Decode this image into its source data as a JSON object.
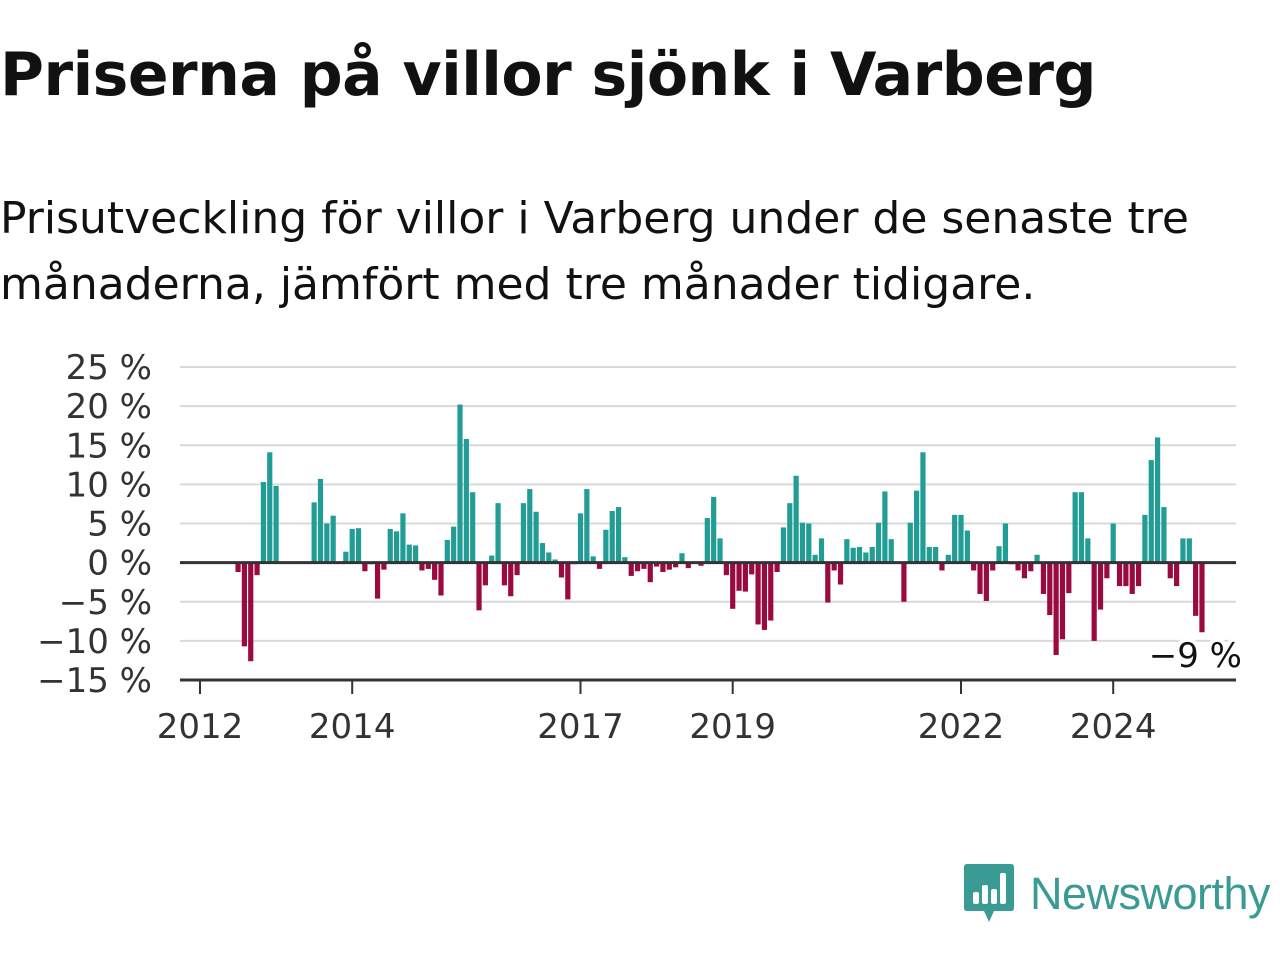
{
  "title": "Priserna på villor sjönk i Varberg",
  "subtitle": "Prisutveckling för villor i Varberg under de senaste tre månaderna, jämfört med tre månader tidigare.",
  "logo": {
    "text": "Newsworthy",
    "icon": "bar-chart-speech-bubble-icon",
    "color": "#3a9a94"
  },
  "chart_data": {
    "type": "bar",
    "ylim": [
      -15,
      25
    ],
    "yticks": [
      25,
      20,
      15,
      10,
      5,
      0,
      -5,
      -10,
      -15
    ],
    "ytick_labels": [
      "25 %",
      "20 %",
      "15 %",
      "10 %",
      "5 %",
      "0 %",
      "−5 %",
      "−10 %",
      "−15 %"
    ],
    "xticks": [
      2012,
      2014,
      2017,
      2019,
      2022,
      2024
    ],
    "xtick_labels": [
      "2012",
      "2014",
      "2017",
      "2019",
      "2022",
      "2024"
    ],
    "x_start_year": 2012.0,
    "x_step_months": 1,
    "colors": {
      "positive": "#219d95",
      "negative": "#9b0a3f"
    },
    "annotation": {
      "text": "−9 %",
      "value": -9
    },
    "values": [
      null,
      null,
      null,
      null,
      null,
      null,
      -1.2,
      -10.7,
      -12.6,
      -1.6,
      10.3,
      14.1,
      9.8,
      null,
      null,
      null,
      null,
      null,
      7.7,
      10.7,
      5.0,
      6.0,
      -0.1,
      1.4,
      4.3,
      4.4,
      -1.1,
      -0.2,
      -4.6,
      -0.9,
      4.3,
      4.0,
      6.3,
      2.3,
      2.2,
      -1.0,
      -0.8,
      -2.2,
      -4.2,
      2.9,
      4.6,
      20.2,
      15.8,
      9.0,
      -6.1,
      -2.9,
      0.9,
      7.6,
      -2.9,
      -4.3,
      -1.6,
      7.6,
      9.4,
      6.5,
      2.5,
      1.3,
      0.4,
      -1.9,
      -4.7,
      -0.2,
      6.3,
      9.4,
      0.8,
      -0.8,
      4.2,
      6.6,
      7.1,
      0.7,
      -1.7,
      -1.1,
      -0.8,
      -2.5,
      -0.5,
      -1.2,
      -0.9,
      -0.6,
      1.2,
      -0.7,
      0.1,
      -0.4,
      5.7,
      8.4,
      3.1,
      -1.6,
      -5.9,
      -3.6,
      -3.7,
      -1.5,
      -7.9,
      -8.6,
      -7.4,
      -1.2,
      4.5,
      7.6,
      11.1,
      5.1,
      5.0,
      1.0,
      3.1,
      -5.1,
      -1.0,
      -2.8,
      3.0,
      1.9,
      2.0,
      1.3,
      2.0,
      5.1,
      9.1,
      3.0,
      -0.1,
      -5.0,
      5.1,
      9.2,
      14.1,
      2.0,
      2.0,
      -1.0,
      1.0,
      6.1,
      6.1,
      4.1,
      -1.0,
      -4.0,
      -4.9,
      -1.0,
      2.1,
      5.0,
      -0.2,
      -1.0,
      -2.0,
      -1.1,
      1.0,
      -4.0,
      -6.7,
      -11.8,
      -9.8,
      -3.9,
      9.0,
      9.0,
      3.1,
      -10.0,
      -6.0,
      -2.0,
      5.0,
      -3.0,
      -3.0,
      -4.0,
      -3.0,
      6.1,
      13.1,
      16.0,
      7.1,
      -2.0,
      -3.0,
      3.1,
      3.1,
      -6.8,
      -8.9
    ]
  }
}
